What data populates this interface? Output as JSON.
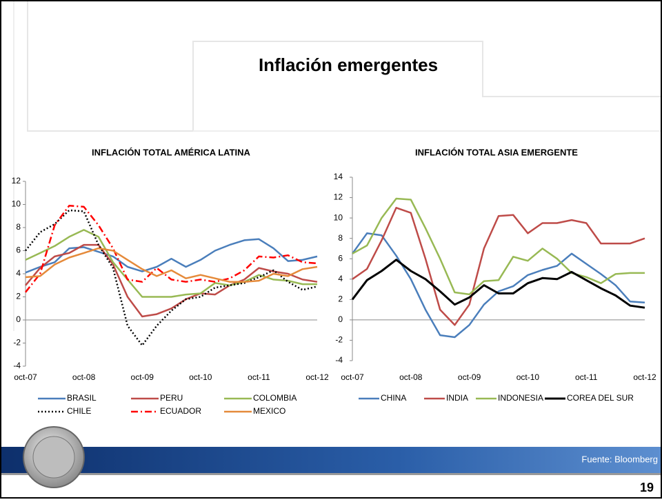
{
  "title": "Inflación emergentes",
  "source": "Fuente: Bloomberg",
  "page_number": "19",
  "chart_data": [
    {
      "type": "line",
      "title": "INFLACIÓN TOTAL AMÉRICA LATINA",
      "categories": [
        "oct-07",
        null,
        null,
        null,
        "oct-08",
        null,
        null,
        null,
        "oct-09",
        null,
        null,
        null,
        "oct-10",
        null,
        null,
        null,
        "oct-11",
        null,
        null,
        null,
        "oct-12"
      ],
      "ylim": [
        -4,
        12
      ],
      "yticks": [
        -4,
        -2,
        0,
        2,
        4,
        6,
        8,
        10,
        12
      ],
      "legend": "bottom",
      "series": [
        {
          "name": "BRASIL",
          "color": "#4a7ebb",
          "style": "solid",
          "values": [
            4.1,
            4.6,
            5.0,
            6.2,
            6.3,
            5.9,
            5.5,
            4.6,
            4.2,
            4.6,
            5.3,
            4.6,
            5.2,
            6.0,
            6.5,
            6.9,
            7.0,
            6.2,
            5.1,
            5.2,
            5.5
          ]
        },
        {
          "name": "PERU",
          "color": "#be4b48",
          "style": "solid",
          "values": [
            3.0,
            4.5,
            5.5,
            5.8,
            6.5,
            6.5,
            4.8,
            2.0,
            0.3,
            0.5,
            1.0,
            1.8,
            2.3,
            2.2,
            3.0,
            3.5,
            4.5,
            4.2,
            4.0,
            3.5,
            3.3
          ]
        },
        {
          "name": "COLOMBIA",
          "color": "#98b954",
          "style": "solid",
          "values": [
            5.2,
            5.8,
            6.4,
            7.2,
            7.8,
            7.2,
            5.0,
            3.5,
            2.0,
            2.0,
            2.0,
            2.2,
            2.3,
            3.2,
            3.0,
            3.3,
            3.9,
            3.5,
            3.4,
            3.1,
            3.1
          ]
        },
        {
          "name": "CHILE",
          "color": "#000000",
          "style": "dotted",
          "values": [
            6.0,
            7.6,
            8.3,
            9.5,
            9.4,
            6.5,
            4.5,
            -0.5,
            -2.2,
            -0.5,
            0.8,
            1.8,
            2.0,
            2.8,
            3.0,
            3.2,
            3.7,
            4.3,
            3.3,
            2.6,
            2.9
          ]
        },
        {
          "name": "ECUADOR",
          "color": "#ff0000",
          "style": "dashdot",
          "values": [
            2.4,
            4.0,
            8.2,
            9.9,
            9.8,
            8.2,
            6.2,
            3.5,
            3.3,
            4.5,
            3.5,
            3.3,
            3.5,
            3.3,
            3.6,
            4.3,
            5.5,
            5.4,
            5.6,
            5.0,
            4.9
          ]
        },
        {
          "name": "MEXICO",
          "color": "#e58a3a",
          "style": "solid",
          "values": [
            3.7,
            3.8,
            4.8,
            5.4,
            5.8,
            6.2,
            6.0,
            5.2,
            4.4,
            3.8,
            4.3,
            3.6,
            3.9,
            3.6,
            3.3,
            3.3,
            3.4,
            4.0,
            3.8,
            4.4,
            4.6
          ]
        }
      ]
    },
    {
      "type": "line",
      "title": "INFLACIÓN TOTAL ASIA EMERGENTE",
      "categories": [
        "oct-07",
        null,
        null,
        null,
        "oct-08",
        null,
        null,
        null,
        "oct-09",
        null,
        null,
        null,
        "oct-10",
        null,
        null,
        null,
        "oct-11",
        null,
        null,
        null,
        "oct-12"
      ],
      "ylim": [
        -4,
        14
      ],
      "yticks": [
        -4,
        -2,
        0,
        2,
        4,
        6,
        8,
        10,
        12,
        14
      ],
      "legend": "bottom",
      "series": [
        {
          "name": "CHINA",
          "color": "#4a7ebb",
          "style": "solid",
          "values": [
            6.5,
            8.5,
            8.3,
            6.3,
            4.0,
            1.0,
            -1.5,
            -1.7,
            -0.5,
            1.5,
            2.8,
            3.3,
            4.4,
            4.9,
            5.3,
            6.5,
            5.5,
            4.5,
            3.4,
            1.8,
            1.7
          ]
        },
        {
          "name": "INDIA",
          "color": "#be4b48",
          "style": "solid",
          "values": [
            4.0,
            5.0,
            7.8,
            11.0,
            10.5,
            6.0,
            1.0,
            -0.5,
            1.5,
            7.0,
            10.2,
            10.3,
            8.5,
            9.5,
            9.5,
            9.8,
            9.5,
            7.5,
            7.5,
            7.5,
            8.0
          ]
        },
        {
          "name": "INDONESIA",
          "color": "#98b954",
          "style": "solid",
          "values": [
            6.5,
            7.3,
            10.0,
            11.9,
            11.8,
            9.0,
            6.0,
            2.7,
            2.5,
            3.8,
            3.9,
            6.2,
            5.8,
            7.0,
            6.0,
            4.6,
            4.2,
            3.6,
            4.5,
            4.6,
            4.6
          ]
        },
        {
          "name": "COREA DEL SUR",
          "color": "#000000",
          "style": "bold",
          "values": [
            2.0,
            3.9,
            4.8,
            5.9,
            4.8,
            4.0,
            2.8,
            1.5,
            2.2,
            3.4,
            2.6,
            2.6,
            3.6,
            4.1,
            4.0,
            4.7,
            3.9,
            3.1,
            2.4,
            1.4,
            1.2
          ]
        }
      ]
    }
  ]
}
